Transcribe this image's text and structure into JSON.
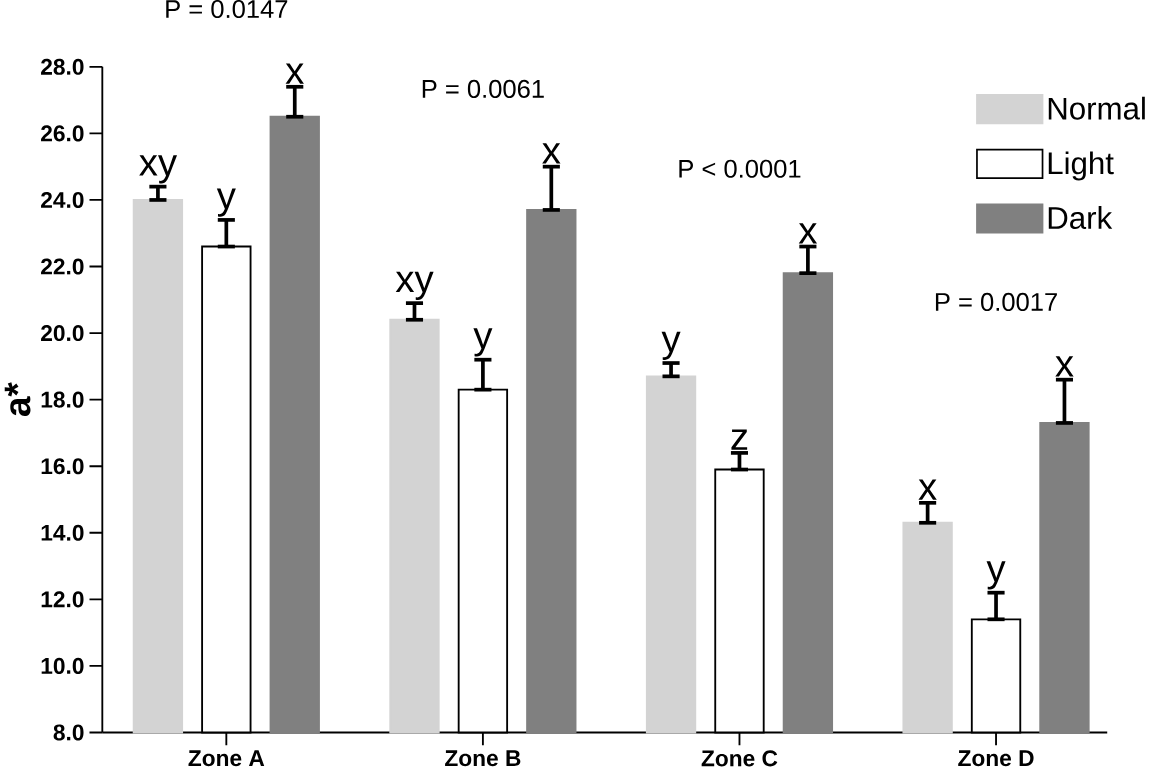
{
  "chart_data": {
    "type": "bar",
    "ylabel": "a*",
    "categories": [
      "Zone A",
      "Zone B",
      "Zone C",
      "Zone D"
    ],
    "series": [
      {
        "name": "Normal",
        "color": "#d3d3d3",
        "values": [
          24.0,
          20.4,
          18.7,
          14.3
        ],
        "errors": [
          [
            24.0,
            24.4
          ],
          [
            20.4,
            20.9
          ],
          [
            18.7,
            19.1
          ],
          [
            14.3,
            14.9
          ]
        ],
        "value_labels": [
          "xy",
          "xy",
          "y",
          "x"
        ]
      },
      {
        "name": "Light",
        "color": "#ffffff",
        "values": [
          22.6,
          18.3,
          15.9,
          11.4
        ],
        "errors": [
          [
            22.6,
            23.4
          ],
          [
            18.3,
            19.2
          ],
          [
            15.9,
            16.4
          ],
          [
            11.4,
            12.2
          ]
        ],
        "value_labels": [
          "y",
          "y",
          "z",
          "y"
        ]
      },
      {
        "name": "Dark",
        "color": "#808080",
        "values": [
          26.5,
          23.7,
          21.8,
          17.3
        ],
        "errors": [
          [
            26.5,
            27.4
          ],
          [
            23.7,
            25.0
          ],
          [
            21.8,
            22.6
          ],
          [
            17.3,
            18.6
          ]
        ],
        "value_labels": [
          "x",
          "x",
          "x",
          "x"
        ]
      }
    ],
    "annotations": [
      "P = 0.0147",
      "P = 0.0061",
      "P < 0.0001",
      "P = 0.0017"
    ],
    "ylim": [
      8.0,
      28.0
    ],
    "yticks": [
      {
        "value": 8,
        "label": "8.0"
      },
      {
        "value": 10,
        "label": "10.0"
      },
      {
        "value": 12,
        "label": "12.0"
      },
      {
        "value": 14,
        "label": "14.0"
      },
      {
        "value": 16,
        "label": "16.0"
      },
      {
        "value": 18,
        "label": "18.0"
      },
      {
        "value": 20,
        "label": "20.0"
      },
      {
        "value": 22,
        "label": "22.0"
      },
      {
        "value": 24,
        "label": "24.0"
      },
      {
        "value": 26,
        "label": "26.0"
      },
      {
        "value": 28,
        "label": "28.0"
      }
    ],
    "legend": "right",
    "grid": false
  }
}
